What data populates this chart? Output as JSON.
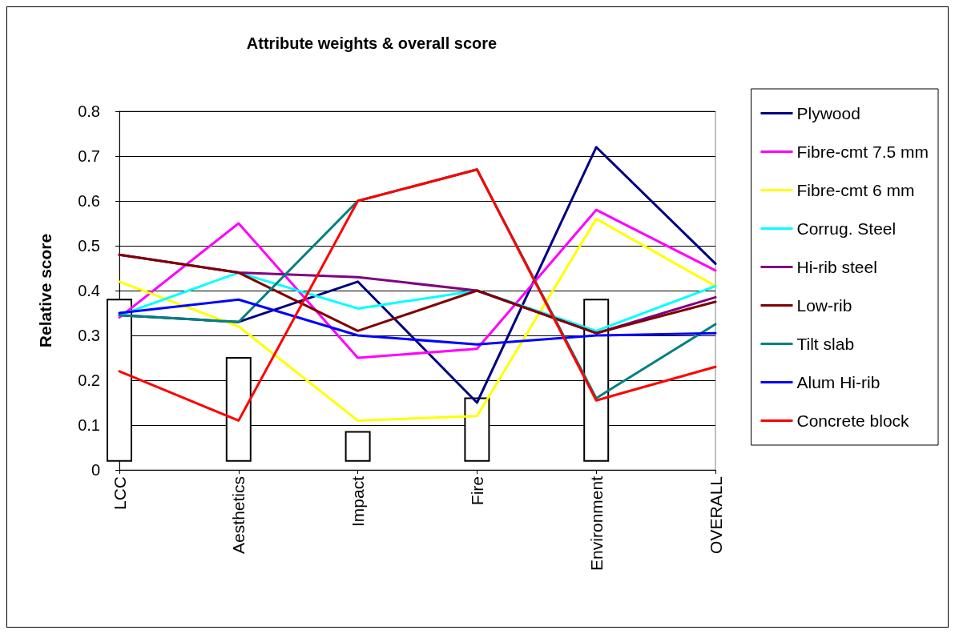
{
  "chart_data": {
    "type": "line",
    "title": "Attribute weights & overall score",
    "ylabel": "Relative score",
    "categories": [
      "LCC",
      "Aesthetics",
      "Impact",
      "Fire",
      "Environment",
      "OVERALL"
    ],
    "ylim": [
      0,
      0.8
    ],
    "yticks": [
      0,
      0.1,
      0.2,
      0.3,
      0.4,
      0.5,
      0.6,
      0.7,
      0.8
    ],
    "grid": "y",
    "legend": "right",
    "marker": "none",
    "line_style": "solid",
    "series": [
      {
        "type": "bar",
        "color": "#ffffff",
        "base": [
          0.02,
          0.02,
          0.02,
          0.02,
          0.02,
          null
        ],
        "values": [
          0.36,
          0.23,
          0.065,
          0.14,
          0.36,
          null
        ]
      },
      {
        "name": "Plywood",
        "color": "#000080",
        "values": [
          0.345,
          0.33,
          0.42,
          0.15,
          0.72,
          0.46
        ]
      },
      {
        "name": "Fibre-cmt 7.5 mm",
        "color": "#ff00ff",
        "values": [
          0.34,
          0.55,
          0.25,
          0.27,
          0.58,
          0.445
        ]
      },
      {
        "name": "Fibre-cmt 6 mm",
        "color": "#ffff00",
        "values": [
          0.42,
          0.32,
          0.11,
          0.12,
          0.56,
          0.41
        ]
      },
      {
        "name": "Corrug. Steel",
        "color": "#00ffff",
        "values": [
          0.345,
          0.44,
          0.36,
          0.4,
          0.31,
          0.41
        ]
      },
      {
        "name": "Hi-rib steel",
        "color": "#800080",
        "values": [
          0.48,
          0.44,
          0.43,
          0.4,
          0.305,
          0.385
        ]
      },
      {
        "name": "Low-rib",
        "color": "#800000",
        "values": [
          0.48,
          0.44,
          0.31,
          0.4,
          0.305,
          0.375
        ]
      },
      {
        "name": "Tilt slab",
        "color": "#008080",
        "values": [
          0.345,
          0.33,
          0.6,
          0.67,
          0.16,
          0.325
        ]
      },
      {
        "name": "Alum Hi-rib",
        "color": "#0000ff",
        "values": [
          0.35,
          0.38,
          0.3,
          0.28,
          0.3,
          0.305
        ]
      },
      {
        "name": "Concrete block",
        "color": "#ff0000",
        "values": [
          0.22,
          0.11,
          0.6,
          0.67,
          0.155,
          0.23
        ]
      }
    ]
  }
}
